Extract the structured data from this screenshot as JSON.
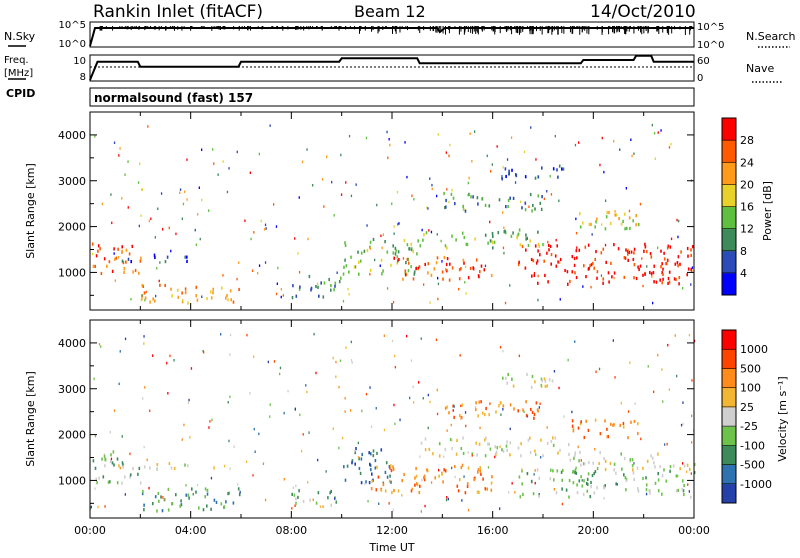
{
  "header": {
    "station": "Rankin Inlet (fitACF)",
    "beam": "Beam 12",
    "date": "14/Oct/2010"
  },
  "top_panels": {
    "nsky_label": "N.Sky",
    "nsky_ticks": [
      "10^5",
      "10^0"
    ],
    "nsearch_label": "N.Search",
    "nsearch_ticks": [
      "10^5",
      "10^0"
    ],
    "freq_label_line1": "Freq.",
    "freq_label_line2": "[MHz]",
    "freq_ticks": [
      "10",
      "8"
    ],
    "nave_label": "Nave",
    "nave_ticks": [
      "60",
      "0"
    ],
    "cpid_label": "CPID",
    "cpid_text": "normalsound (fast) 157"
  },
  "colors": {
    "power_scale": [
      "#0000ff",
      "#2a4bb8",
      "#3d8a5a",
      "#5fbf3f",
      "#e8d22a",
      "#ff9a1a",
      "#ff5a00",
      "#ff0000"
    ],
    "velocity_scale": [
      "#2341a8",
      "#2e73b0",
      "#3d8a5a",
      "#6cc24a",
      "#cfcfcf",
      "#f2b632",
      "#ff8c1a",
      "#ff4400",
      "#ff0000"
    ]
  },
  "chart_data": [
    {
      "type": "line",
      "panel": "n-sky-n-search",
      "x_unit": "hours UT",
      "xlim": [
        0,
        24
      ],
      "series": [
        {
          "name": "N.Sky",
          "x": [
            0,
            0.2,
            0.4,
            10,
            13.8,
            13.9,
            14.1,
            24
          ],
          "values": [
            1,
            31623,
            31623,
            31623,
            31623,
            3162,
            31623,
            31623
          ]
        },
        {
          "name": "N.Search",
          "x": [
            0,
            24
          ],
          "values": [
            1,
            1
          ]
        }
      ]
    },
    {
      "type": "line",
      "panel": "freq-nave",
      "xlim": [
        0,
        24
      ],
      "series": [
        {
          "name": "Freq.",
          "x": [
            0,
            0.3,
            1.9,
            2.0,
            5.9,
            6.0,
            9.9,
            10.0,
            13.0,
            13.1,
            19.5,
            19.6,
            21.6,
            21.7,
            22.3,
            22.4,
            24
          ],
          "values": [
            8,
            10.2,
            10.2,
            9.6,
            9.6,
            10.2,
            10.2,
            10.6,
            10.6,
            10.0,
            10.0,
            10.4,
            10.4,
            10.9,
            10.9,
            10.2,
            10.2
          ]
        },
        {
          "name": "Nave",
          "x": [
            0,
            24
          ],
          "values": [
            40,
            40
          ]
        }
      ]
    },
    {
      "type": "heatmap",
      "panel": "power",
      "title": "",
      "xlabel": "",
      "ylabel": "Slant Range [km]",
      "xlim": [
        0,
        24
      ],
      "ylim": [
        180,
        4500
      ],
      "x_ticks": [
        "00:00",
        "04:00",
        "08:00",
        "12:00",
        "16:00",
        "20:00",
        "00:00"
      ],
      "y_ticks": [
        1000,
        2000,
        3000,
        4000
      ],
      "colorbar_label": "Power [dB]",
      "colorbar_ticks": [
        "4",
        "8",
        "12",
        "16",
        "20",
        "24",
        "28"
      ],
      "echo_regions": [
        {
          "t0": 0,
          "t1": 2,
          "r0": 900,
          "r1": 1600,
          "level": 6
        },
        {
          "t0": 2,
          "t1": 6,
          "r0": 300,
          "r1": 700,
          "level": 5
        },
        {
          "t0": 1,
          "t1": 4,
          "r0": 1200,
          "r1": 1350,
          "level": 1
        },
        {
          "t0": 8,
          "t1": 10,
          "r0": 400,
          "r1": 900,
          "level": 2
        },
        {
          "t0": 10,
          "t1": 13,
          "r0": 900,
          "r1": 1700,
          "level": 3
        },
        {
          "t0": 12,
          "t1": 16,
          "r0": 800,
          "r1": 1300,
          "level": 6
        },
        {
          "t0": 13,
          "t1": 18,
          "r0": 1500,
          "r1": 1900,
          "level": 3
        },
        {
          "t0": 14,
          "t1": 18,
          "r0": 2300,
          "r1": 2700,
          "level": 2
        },
        {
          "t0": 16,
          "t1": 19,
          "r0": 3000,
          "r1": 3300,
          "level": 1
        },
        {
          "t0": 17,
          "t1": 24,
          "r0": 700,
          "r1": 1600,
          "level": 7
        },
        {
          "t0": 19,
          "t1": 22,
          "r0": 1900,
          "r1": 2300,
          "level": 4
        }
      ]
    },
    {
      "type": "heatmap",
      "panel": "velocity",
      "title": "",
      "xlabel": "Time UT",
      "ylabel": "Slant Range [km]",
      "xlim": [
        0,
        24
      ],
      "ylim": [
        180,
        4500
      ],
      "x_ticks": [
        "00:00",
        "04:00",
        "08:00",
        "12:00",
        "16:00",
        "20:00",
        "00:00"
      ],
      "y_ticks": [
        1000,
        2000,
        3000,
        4000
      ],
      "colorbar_label": "Velocity [m s⁻¹]",
      "colorbar_ticks": [
        "1000",
        "500",
        "100",
        "25",
        "-25",
        "-100",
        "-500",
        "-1000"
      ],
      "echo_regions": [
        {
          "t0": 0,
          "t1": 2,
          "r0": 900,
          "r1": 1600,
          "level": 3
        },
        {
          "t0": 2,
          "t1": 6,
          "r0": 300,
          "r1": 800,
          "level": 2
        },
        {
          "t0": 1,
          "t1": 5,
          "r0": 1200,
          "r1": 1350,
          "level": 4
        },
        {
          "t0": 8,
          "t1": 10,
          "r0": 400,
          "r1": 800,
          "level": 3
        },
        {
          "t0": 10,
          "t1": 12,
          "r0": 900,
          "r1": 1700,
          "level": 1
        },
        {
          "t0": 11,
          "t1": 16,
          "r0": 700,
          "r1": 1300,
          "level": 6
        },
        {
          "t0": 13,
          "t1": 19,
          "r0": 1500,
          "r1": 1900,
          "level": 4
        },
        {
          "t0": 14,
          "t1": 18,
          "r0": 2300,
          "r1": 2700,
          "level": 6
        },
        {
          "t0": 16,
          "t1": 19,
          "r0": 3000,
          "r1": 3300,
          "level": 4
        },
        {
          "t0": 17,
          "t1": 24,
          "r0": 600,
          "r1": 1200,
          "level": 3
        },
        {
          "t0": 19,
          "t1": 24,
          "r0": 1200,
          "r1": 1600,
          "level": 4
        },
        {
          "t0": 19,
          "t1": 22,
          "r0": 1900,
          "r1": 2300,
          "level": 6
        }
      ]
    }
  ]
}
